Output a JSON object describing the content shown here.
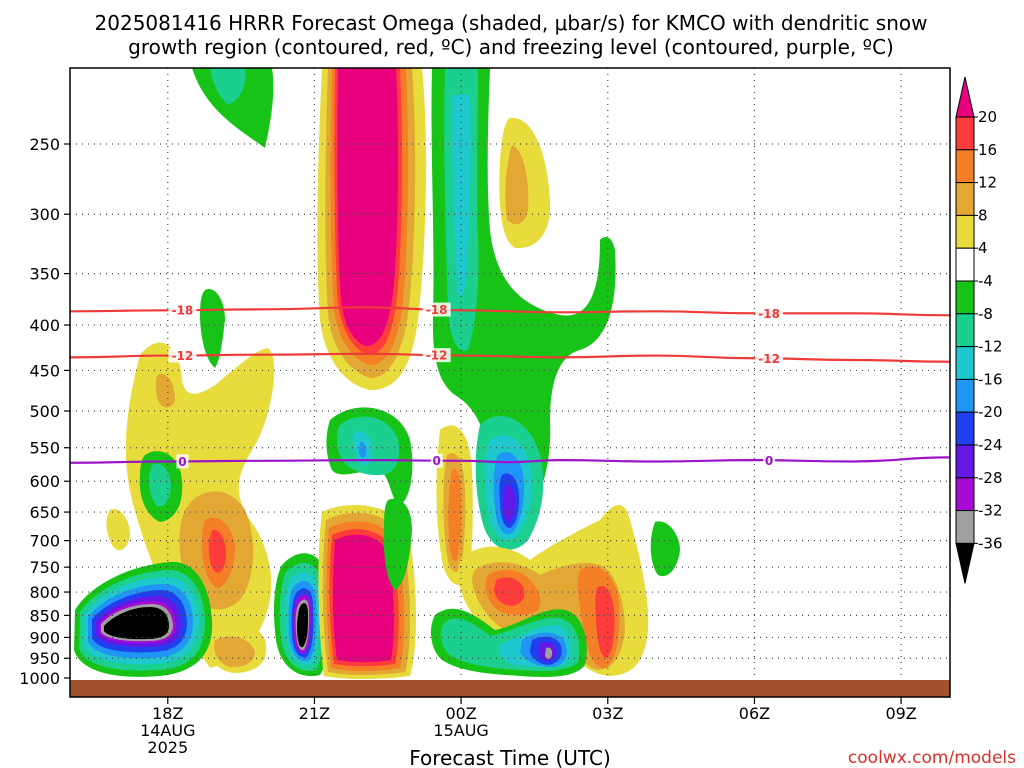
{
  "chart_data": {
    "type": "contour",
    "title_line1": "2025081416 HRRR Forecast Omega (shaded, μbar/s) for KMCO with dendritic snow",
    "title_line2": "growth region (contoured, red, ºC) and freezing level (contoured, purple, ºC)",
    "xlabel": "Forecast Time (UTC)",
    "credit": "coolwx.com/models",
    "x_ticks": [
      {
        "hour": 18,
        "lines": [
          "18Z",
          "14AUG",
          "2025"
        ]
      },
      {
        "hour": 21,
        "lines": [
          "21Z"
        ]
      },
      {
        "hour": 24,
        "lines": [
          "00Z",
          "15AUG"
        ]
      },
      {
        "hour": 27,
        "lines": [
          "03Z"
        ]
      },
      {
        "hour": 30,
        "lines": [
          "06Z"
        ]
      },
      {
        "hour": 33,
        "lines": [
          "09Z"
        ]
      }
    ],
    "xlim": [
      16,
      34
    ],
    "y_ticks": [
      250,
      300,
      350,
      400,
      450,
      500,
      550,
      600,
      650,
      700,
      750,
      800,
      850,
      900,
      950,
      1000
    ],
    "ylim_hPa": [
      1025,
      200
    ],
    "colorbar": {
      "labels": [
        "20",
        "16",
        "12",
        "8",
        "4",
        "-4",
        "-8",
        "-12",
        "-16",
        "-20",
        "-24",
        "-28",
        "-32",
        "-36"
      ],
      "colors": [
        "#e8007e",
        "#ff3c3c",
        "#f57f26",
        "#e3a833",
        "#e8dc3c",
        "#ffffff",
        "#18c318",
        "#1bcf8e",
        "#1ec8cc",
        "#1f96f5",
        "#2040f0",
        "#6418e6",
        "#a80ad6",
        "#a0a0a0",
        "#000000"
      ]
    },
    "contours": [
      {
        "name": "-18",
        "color": "#ee3a3a",
        "label": "-18",
        "points": [
          [
            16,
            386
          ],
          [
            18,
            385
          ],
          [
            20,
            384
          ],
          [
            22,
            382
          ],
          [
            24,
            385
          ],
          [
            26,
            387
          ],
          [
            28,
            386
          ],
          [
            30,
            388
          ],
          [
            32,
            388
          ],
          [
            34,
            390
          ]
        ]
      },
      {
        "name": "-12",
        "color": "#ee3a3a",
        "label": "-12",
        "points": [
          [
            16,
            435
          ],
          [
            18,
            433
          ],
          [
            20,
            432
          ],
          [
            22,
            431
          ],
          [
            24,
            433
          ],
          [
            26,
            435
          ],
          [
            28,
            433
          ],
          [
            30,
            436
          ],
          [
            32,
            438
          ],
          [
            34,
            440
          ]
        ]
      },
      {
        "name": "0",
        "color": "#9c14c8",
        "label": "0",
        "points": [
          [
            16,
            572
          ],
          [
            18,
            570
          ],
          [
            20,
            569
          ],
          [
            22,
            568
          ],
          [
            24,
            569
          ],
          [
            25,
            571
          ],
          [
            26,
            568
          ],
          [
            28,
            570
          ],
          [
            30,
            568
          ],
          [
            32,
            570
          ],
          [
            34,
            564
          ]
        ]
      }
    ],
    "grid": true
  }
}
